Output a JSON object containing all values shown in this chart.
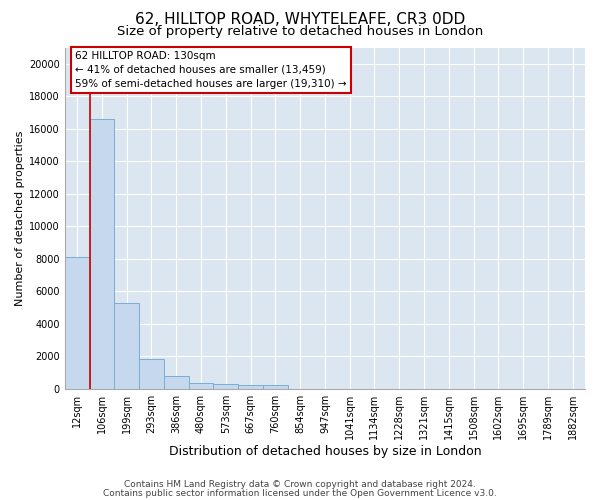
{
  "title1": "62, HILLTOP ROAD, WHYTELEAFE, CR3 0DD",
  "title2": "Size of property relative to detached houses in London",
  "xlabel": "Distribution of detached houses by size in London",
  "ylabel": "Number of detached properties",
  "categories": [
    "12sqm",
    "106sqm",
    "199sqm",
    "293sqm",
    "386sqm",
    "480sqm",
    "573sqm",
    "667sqm",
    "760sqm",
    "854sqm",
    "947sqm",
    "1041sqm",
    "1134sqm",
    "1228sqm",
    "1321sqm",
    "1415sqm",
    "1508sqm",
    "1602sqm",
    "1695sqm",
    "1789sqm",
    "1882sqm"
  ],
  "values": [
    8100,
    16600,
    5300,
    1850,
    750,
    370,
    280,
    230,
    200,
    0,
    0,
    0,
    0,
    0,
    0,
    0,
    0,
    0,
    0,
    0,
    0
  ],
  "bar_color": "#c5d8ed",
  "bar_edge_color": "#7aadd4",
  "vline_color": "#cc0000",
  "annotation_text": "62 HILLTOP ROAD: 130sqm\n← 41% of detached houses are smaller (13,459)\n59% of semi-detached houses are larger (19,310) →",
  "annotation_box_color": "#ffffff",
  "annotation_box_edge_color": "#cc0000",
  "ylim": [
    0,
    21000
  ],
  "yticks": [
    0,
    2000,
    4000,
    6000,
    8000,
    10000,
    12000,
    14000,
    16000,
    18000,
    20000
  ],
  "background_color": "#dce6f0",
  "grid_color": "#ffffff",
  "footer1": "Contains HM Land Registry data © Crown copyright and database right 2024.",
  "footer2": "Contains public sector information licensed under the Open Government Licence v3.0.",
  "title1_fontsize": 11,
  "title2_fontsize": 9.5,
  "xlabel_fontsize": 9,
  "ylabel_fontsize": 8,
  "tick_fontsize": 7,
  "footer_fontsize": 6.5,
  "annotation_fontsize": 7.5
}
